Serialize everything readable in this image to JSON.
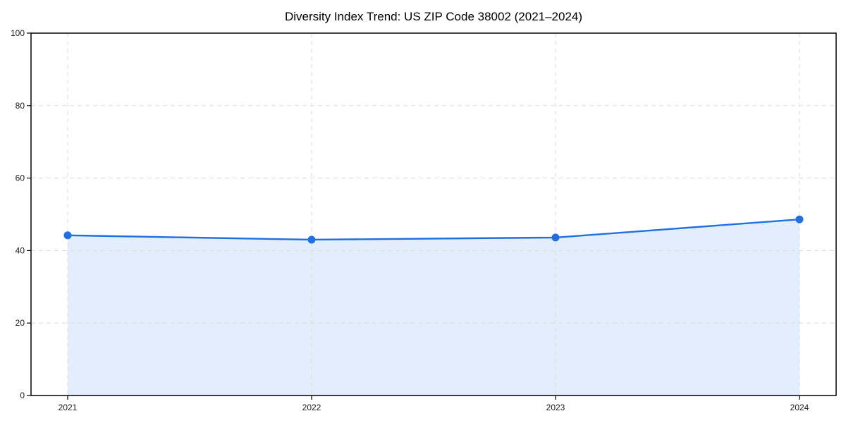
{
  "chart_data": {
    "type": "area",
    "title": "Diversity Index Trend: US ZIP Code 38002 (2021–2024)",
    "categories": [
      "2021",
      "2022",
      "2023",
      "2024"
    ],
    "series": [
      {
        "name": "Diversity Index",
        "values": [
          44.2,
          43.0,
          43.6,
          48.6
        ]
      }
    ],
    "xlabel": "",
    "ylabel": "",
    "ylim": [
      0,
      100
    ],
    "yticks": [
      0,
      20,
      40,
      60,
      80,
      100
    ],
    "grid": true,
    "grid_style": "dashed",
    "legend": "none",
    "marker": "circle",
    "colors": {
      "line": "#2170e0",
      "marker": "#2170e0",
      "fill": "#e3eefc",
      "grid": "#dcdcdc",
      "axis": "#000000",
      "text": "#000000",
      "background": "#ffffff"
    }
  }
}
